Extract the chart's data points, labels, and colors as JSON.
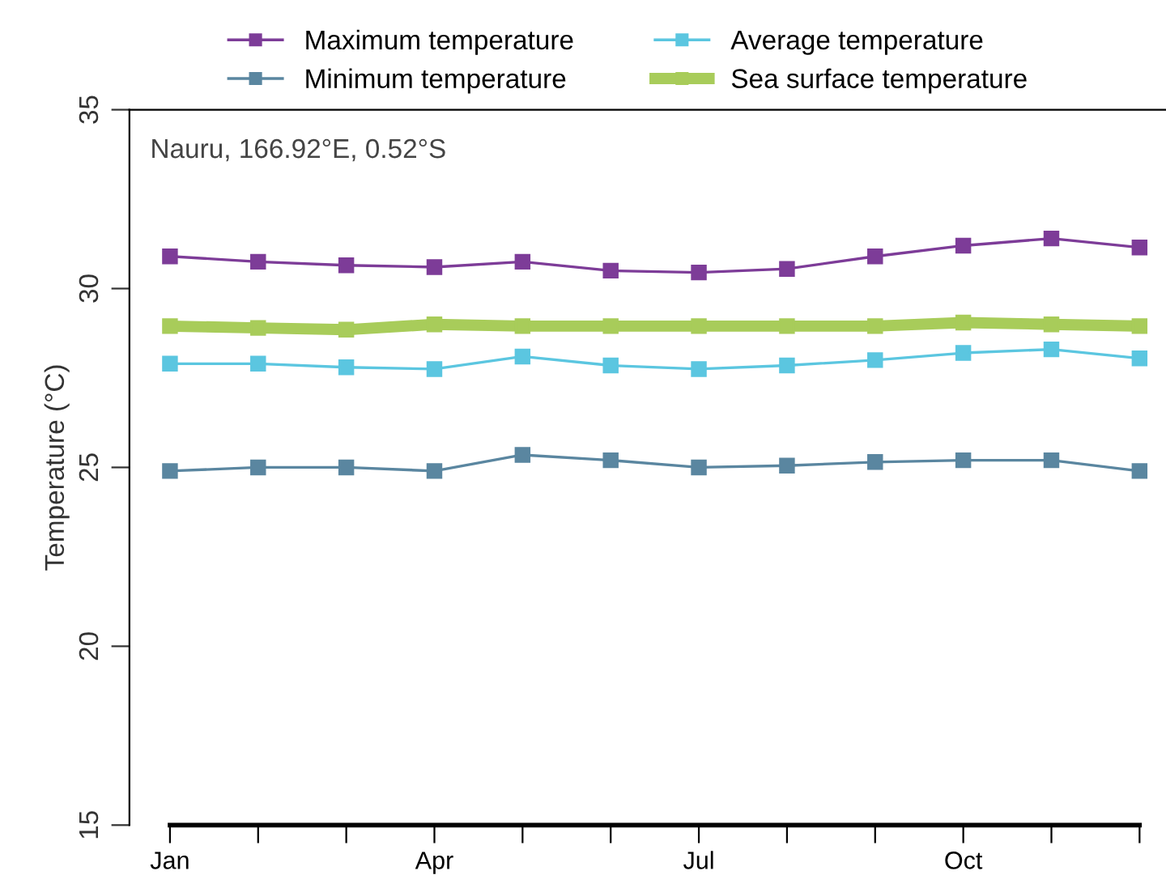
{
  "chart_data": {
    "type": "line",
    "ylabel": "Temperature (°C)",
    "categories": [
      "Jan",
      null,
      null,
      "Apr",
      null,
      null,
      "Jul",
      null,
      null,
      "Oct",
      null,
      null
    ],
    "series": [
      {
        "name": "Maximum temperature",
        "color": "#7d3c98",
        "values": [
          30.9,
          30.75,
          30.65,
          30.6,
          30.75,
          30.5,
          30.45,
          30.55,
          30.9,
          31.2,
          31.4,
          31.15
        ]
      },
      {
        "name": "Minimum temperature",
        "color": "#5a86a0",
        "values": [
          24.9,
          25.0,
          25.0,
          24.9,
          25.35,
          25.2,
          25.0,
          25.05,
          25.15,
          25.2,
          25.2,
          24.9
        ]
      },
      {
        "name": "Average temperature",
        "color": "#5bc6e0",
        "values": [
          27.9,
          27.9,
          27.8,
          27.75,
          28.1,
          27.85,
          27.75,
          27.85,
          28.0,
          28.2,
          28.3,
          28.05
        ]
      },
      {
        "name": "Sea surface temperature",
        "color": "#a8cc5a",
        "values": [
          28.95,
          28.9,
          28.85,
          29.0,
          28.95,
          28.95,
          28.95,
          28.95,
          28.95,
          29.05,
          29.0,
          28.95
        ]
      }
    ],
    "ylim": [
      15,
      35
    ],
    "yticks": [
      15,
      20,
      25,
      30,
      35
    ],
    "annotations": [
      "Nauru, 166.92°E, 0.52°S"
    ],
    "legend": "top",
    "grid": false,
    "marker": "square",
    "line_style": "solid"
  }
}
